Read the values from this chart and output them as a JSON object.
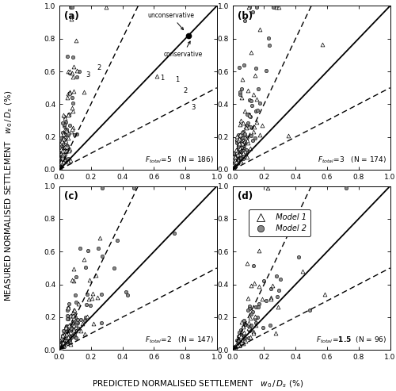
{
  "subplots": [
    {
      "label": "(a)",
      "ftotal_num": "5",
      "N": 186
    },
    {
      "label": "(b)",
      "ftotal_num": "3",
      "N": 174
    },
    {
      "label": "(c)",
      "ftotal_num": "2",
      "N": 147
    },
    {
      "label": "(d)",
      "ftotal_num": "1.5",
      "N": 96
    }
  ],
  "xlim": [
    0.0,
    1.0
  ],
  "ylim": [
    0.0,
    1.0
  ],
  "xticks": [
    0.0,
    0.2,
    0.4,
    0.6,
    0.8,
    1.0
  ],
  "yticks": [
    0.0,
    0.2,
    0.4,
    0.6,
    0.8,
    1.0
  ],
  "xlabel": "PREDICTED NORMALISED SETTLEMENT   $w_0\\,/\\,D_s$ (%)",
  "ylabel": "MEASURED NORMALISED SETTLEMENT   $w_0\\,/\\,D_s$ (%)",
  "model1_facecolor": "white",
  "model1_edgecolor": "black",
  "model2_facecolor": "#888888",
  "model2_edgecolor": "black",
  "marker1_size": 12,
  "marker2_size": 10
}
